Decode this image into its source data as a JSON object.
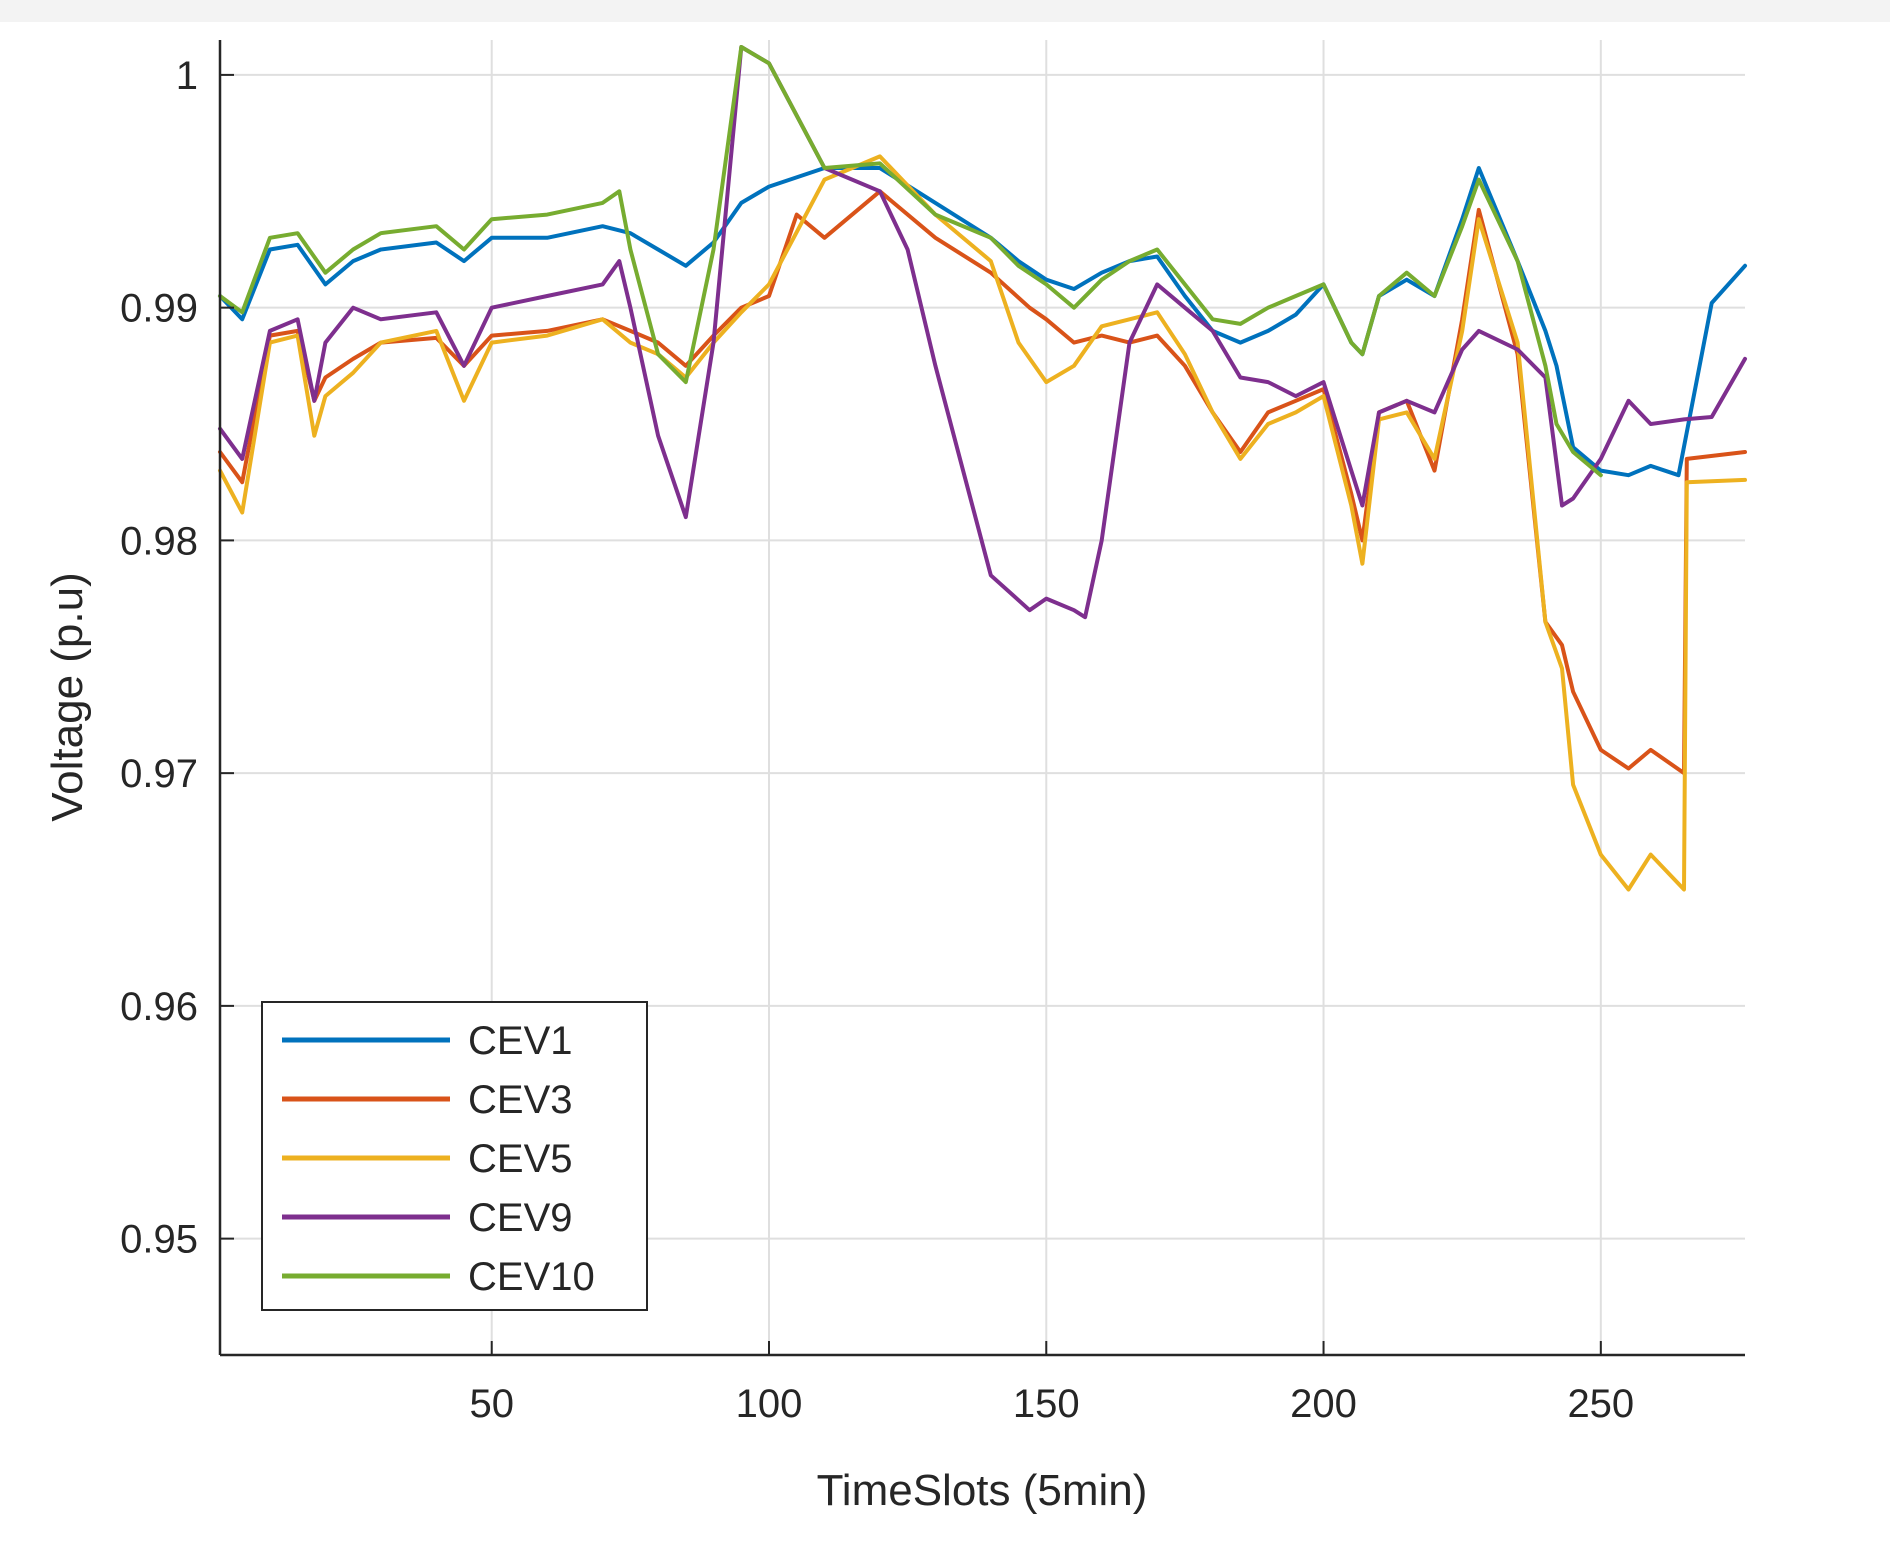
{
  "chart_data": {
    "type": "line",
    "title": "",
    "xlabel": "TimeSlots (5min)",
    "ylabel": "Voltage (p.u)",
    "xlim": [
      1,
      276
    ],
    "ylim": [
      0.945,
      1.0015
    ],
    "xticks": [
      50,
      100,
      150,
      200,
      250
    ],
    "xtick_labels": [
      "50",
      "100",
      "150",
      "200",
      "250"
    ],
    "yticks": [
      0.95,
      0.96,
      0.97,
      0.98,
      0.99,
      1.0
    ],
    "ytick_labels": [
      "0.95",
      "0.96",
      "0.97",
      "0.98",
      "0.99",
      "1"
    ],
    "grid": true,
    "legend_position": "bottom-left",
    "series": [
      {
        "name": "CEV1",
        "color": "#0072BD",
        "x": [
          1,
          5,
          10,
          15,
          20,
          25,
          30,
          40,
          45,
          50,
          60,
          70,
          75,
          80,
          85,
          90,
          95,
          100,
          110,
          120,
          130,
          140,
          145,
          150,
          155,
          160,
          165,
          170,
          175,
          180,
          185,
          190,
          195,
          200,
          205,
          207,
          210,
          215,
          220,
          225,
          228,
          235,
          240,
          242,
          245,
          250,
          255,
          259,
          264,
          270,
          276
        ],
        "y": [
          0.9905,
          0.9895,
          0.9925,
          0.9927,
          0.991,
          0.992,
          0.9925,
          0.9928,
          0.992,
          0.993,
          0.993,
          0.9935,
          0.9932,
          0.9925,
          0.9918,
          0.9928,
          0.9945,
          0.9952,
          0.996,
          0.996,
          0.9945,
          0.993,
          0.992,
          0.9912,
          0.9908,
          0.9915,
          0.992,
          0.9922,
          0.9905,
          0.989,
          0.9885,
          0.989,
          0.9897,
          0.991,
          0.9885,
          0.988,
          0.9905,
          0.9912,
          0.9905,
          0.9938,
          0.996,
          0.992,
          0.989,
          0.9875,
          0.984,
          0.983,
          0.9828,
          0.9832,
          0.9828,
          0.9902,
          0.9918
        ]
      },
      {
        "name": "CEV3",
        "color": "#D95319",
        "x": [
          1,
          5,
          10,
          15,
          18,
          20,
          25,
          30,
          40,
          45,
          50,
          60,
          70,
          75,
          80,
          85,
          90,
          95,
          100,
          105,
          110,
          120,
          130,
          140,
          147,
          150,
          155,
          160,
          165,
          170,
          175,
          180,
          185,
          190,
          195,
          200,
          205,
          207,
          210,
          215,
          220,
          225,
          228,
          235,
          240,
          243,
          245,
          250,
          255,
          259,
          265,
          265.5,
          276
        ],
        "y": [
          0.9838,
          0.9825,
          0.9888,
          0.989,
          0.986,
          0.987,
          0.9878,
          0.9885,
          0.9887,
          0.9875,
          0.9888,
          0.989,
          0.9895,
          0.989,
          0.9885,
          0.9875,
          0.9888,
          0.99,
          0.9905,
          0.994,
          0.993,
          0.995,
          0.993,
          0.9915,
          0.99,
          0.9895,
          0.9885,
          0.9888,
          0.9885,
          0.9888,
          0.9875,
          0.9855,
          0.9838,
          0.9855,
          0.986,
          0.9865,
          0.982,
          0.98,
          0.9855,
          0.986,
          0.983,
          0.9895,
          0.9942,
          0.988,
          0.9765,
          0.9755,
          0.9735,
          0.971,
          0.9702,
          0.971,
          0.97,
          0.9835,
          0.9838
        ]
      },
      {
        "name": "CEV5",
        "color": "#EDB120",
        "x": [
          1,
          5,
          10,
          15,
          18,
          20,
          25,
          30,
          40,
          45,
          50,
          60,
          70,
          75,
          80,
          85,
          90,
          95,
          100,
          110,
          120,
          130,
          140,
          145,
          150,
          155,
          160,
          165,
          170,
          175,
          180,
          185,
          190,
          195,
          200,
          205,
          207,
          210,
          215,
          220,
          225,
          228,
          235,
          240,
          243,
          245,
          250,
          255,
          259,
          265,
          265.5,
          276
        ],
        "y": [
          0.983,
          0.9812,
          0.9885,
          0.9888,
          0.9845,
          0.9862,
          0.9872,
          0.9885,
          0.989,
          0.986,
          0.9885,
          0.9888,
          0.9895,
          0.9885,
          0.988,
          0.987,
          0.9885,
          0.9898,
          0.991,
          0.9955,
          0.9965,
          0.994,
          0.992,
          0.9885,
          0.9868,
          0.9875,
          0.9892,
          0.9895,
          0.9898,
          0.988,
          0.9855,
          0.9835,
          0.985,
          0.9855,
          0.9862,
          0.9815,
          0.979,
          0.9852,
          0.9855,
          0.9835,
          0.989,
          0.9938,
          0.9885,
          0.9765,
          0.9745,
          0.9695,
          0.9665,
          0.965,
          0.9665,
          0.965,
          0.9825,
          0.9826
        ]
      },
      {
        "name": "CEV9",
        "color": "#7E2F8E",
        "x": [
          1,
          5,
          10,
          15,
          18,
          20,
          25,
          30,
          40,
          45,
          50,
          60,
          70,
          73,
          75,
          80,
          85,
          90,
          95,
          100,
          110,
          120,
          125,
          130,
          135,
          140,
          147,
          150,
          155,
          157,
          160,
          165,
          170,
          175,
          180,
          185,
          190,
          195,
          200,
          205,
          207,
          210,
          215,
          220,
          225,
          228,
          235,
          240,
          243,
          245,
          250,
          255,
          259,
          265,
          270,
          276
        ],
        "y": [
          0.9848,
          0.9835,
          0.989,
          0.9895,
          0.986,
          0.9885,
          0.99,
          0.9895,
          0.9898,
          0.9875,
          0.99,
          0.9905,
          0.991,
          0.992,
          0.99,
          0.9845,
          0.981,
          0.9885,
          1.0012,
          1.0005,
          0.996,
          0.995,
          0.9925,
          0.9875,
          0.983,
          0.9785,
          0.977,
          0.9775,
          0.977,
          0.9767,
          0.98,
          0.9885,
          0.991,
          0.99,
          0.989,
          0.987,
          0.9868,
          0.9862,
          0.9868,
          0.983,
          0.9815,
          0.9855,
          0.986,
          0.9855,
          0.9882,
          0.989,
          0.9882,
          0.987,
          0.9815,
          0.9818,
          0.9835,
          0.986,
          0.985,
          0.9852,
          0.9853,
          0.9878
        ]
      },
      {
        "name": "CEV10",
        "color": "#77AC30",
        "x": [
          1,
          5,
          10,
          15,
          20,
          25,
          30,
          40,
          45,
          50,
          60,
          70,
          73,
          75,
          80,
          85,
          90,
          95,
          100,
          110,
          120,
          130,
          140,
          145,
          150,
          155,
          160,
          165,
          170,
          175,
          180,
          185,
          190,
          195,
          200,
          205,
          207,
          210,
          215,
          220,
          225,
          228,
          235,
          240,
          242,
          245,
          250
        ],
        "y": [
          0.9905,
          0.9898,
          0.993,
          0.9932,
          0.9915,
          0.9925,
          0.9932,
          0.9935,
          0.9925,
          0.9938,
          0.994,
          0.9945,
          0.995,
          0.9925,
          0.988,
          0.9868,
          0.9925,
          1.0012,
          1.0005,
          0.996,
          0.9962,
          0.994,
          0.993,
          0.9918,
          0.991,
          0.99,
          0.9912,
          0.992,
          0.9925,
          0.991,
          0.9895,
          0.9893,
          0.99,
          0.9905,
          0.991,
          0.9885,
          0.988,
          0.9905,
          0.9915,
          0.9905,
          0.9935,
          0.9955,
          0.992,
          0.9875,
          0.985,
          0.9838,
          0.9828
        ]
      }
    ]
  }
}
